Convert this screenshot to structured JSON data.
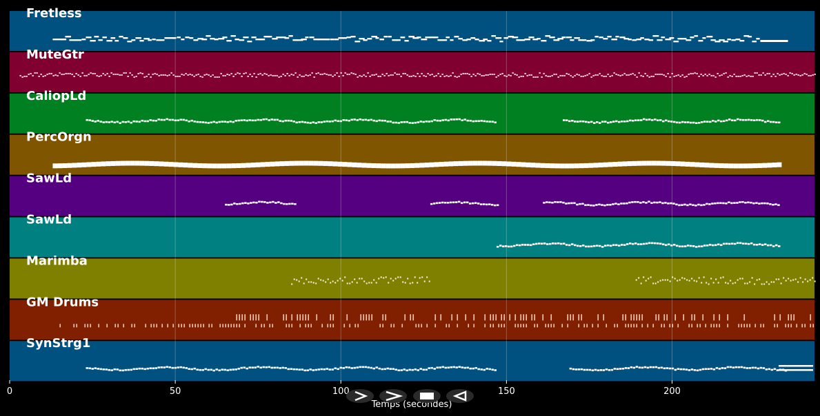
{
  "chart_data": {
    "type": "piano-roll",
    "xlabel": "Temps (secondes)",
    "xlim": [
      0,
      243
    ],
    "xticks": [
      0,
      50,
      100,
      150,
      200
    ],
    "gridlines": true,
    "tracks": [
      {
        "name": "Fretless",
        "color": "#005080",
        "segments": [
          [
            13,
            235
          ]
        ],
        "style": "bars",
        "gridline_alpha": 0.35
      },
      {
        "name": "MuteGtr",
        "color": "#800030",
        "segments": [
          [
            3,
            243
          ]
        ],
        "style": "dense",
        "gridline_alpha": 0.35
      },
      {
        "name": "CaliopLd",
        "color": "#008020",
        "segments": [
          [
            23,
            147
          ],
          [
            167,
            232
          ]
        ],
        "style": "dots",
        "gridline_alpha": 0.35
      },
      {
        "name": "PercOrgn",
        "color": "#805500",
        "segments": [
          [
            13,
            232
          ]
        ],
        "style": "thick",
        "gridline_alpha": 0.35
      },
      {
        "name": "SawLd",
        "color": "#550080",
        "segments": [
          [
            65,
            86
          ],
          [
            127,
            147
          ],
          [
            161,
            232
          ]
        ],
        "style": "dots",
        "gridline_alpha": 0.35
      },
      {
        "name": "SawLd",
        "color": "#008080",
        "segments": [
          [
            147,
            232
          ]
        ],
        "style": "dots",
        "gridline_alpha": 0.35
      },
      {
        "name": "Marimba",
        "color": "#808000",
        "segments": [
          [
            85,
            127
          ],
          [
            189,
            243
          ]
        ],
        "style": "scatter",
        "gridline_alpha": 0.35
      },
      {
        "name": "GM Drums",
        "color": "#802000",
        "segments": [
          [
            13,
            243
          ]
        ],
        "style": "drums",
        "gridline_alpha": 0.35
      },
      {
        "name": "SynStrg1",
        "color": "#005080",
        "segments": [
          [
            23,
            147
          ],
          [
            169,
            234
          ]
        ],
        "style": "dots",
        "gridline_alpha": 0.35
      }
    ]
  },
  "controls": {
    "play_icon": "play-icon",
    "forward_icon": "forward-icon",
    "stop_icon": "stop-icon",
    "rewind_icon": "rewind-icon"
  },
  "legend_icon": "lines-icon"
}
